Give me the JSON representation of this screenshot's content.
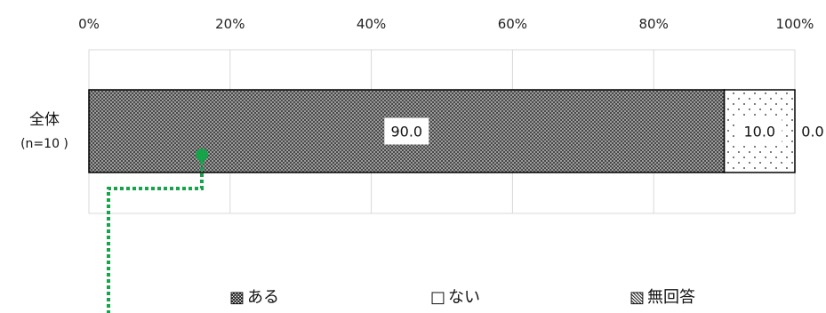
{
  "chart_data": {
    "type": "bar",
    "orientation": "horizontal",
    "stacked": true,
    "categories": [
      "全体"
    ],
    "category_sublabels": [
      "(n=10 )"
    ],
    "series": [
      {
        "name": "ある",
        "values": [
          90.0
        ],
        "label": "90.0",
        "color": "#707070",
        "pattern": "checker"
      },
      {
        "name": "ない",
        "values": [
          10.0
        ],
        "label": "10.0",
        "color": "#ffffff",
        "pattern": "dots"
      },
      {
        "name": "無回答",
        "values": [
          0.0
        ],
        "label": "0.0",
        "color": "#d0d0d0",
        "pattern": "hatch"
      }
    ],
    "x_ticks": [
      "0%",
      "20%",
      "40%",
      "60%",
      "80%",
      "100%"
    ],
    "xlim": [
      0,
      100
    ],
    "grid": true,
    "legend_position": "bottom",
    "legend_markers": [
      "▩",
      "□",
      "▧"
    ],
    "annotation_color": "#16a34a"
  }
}
